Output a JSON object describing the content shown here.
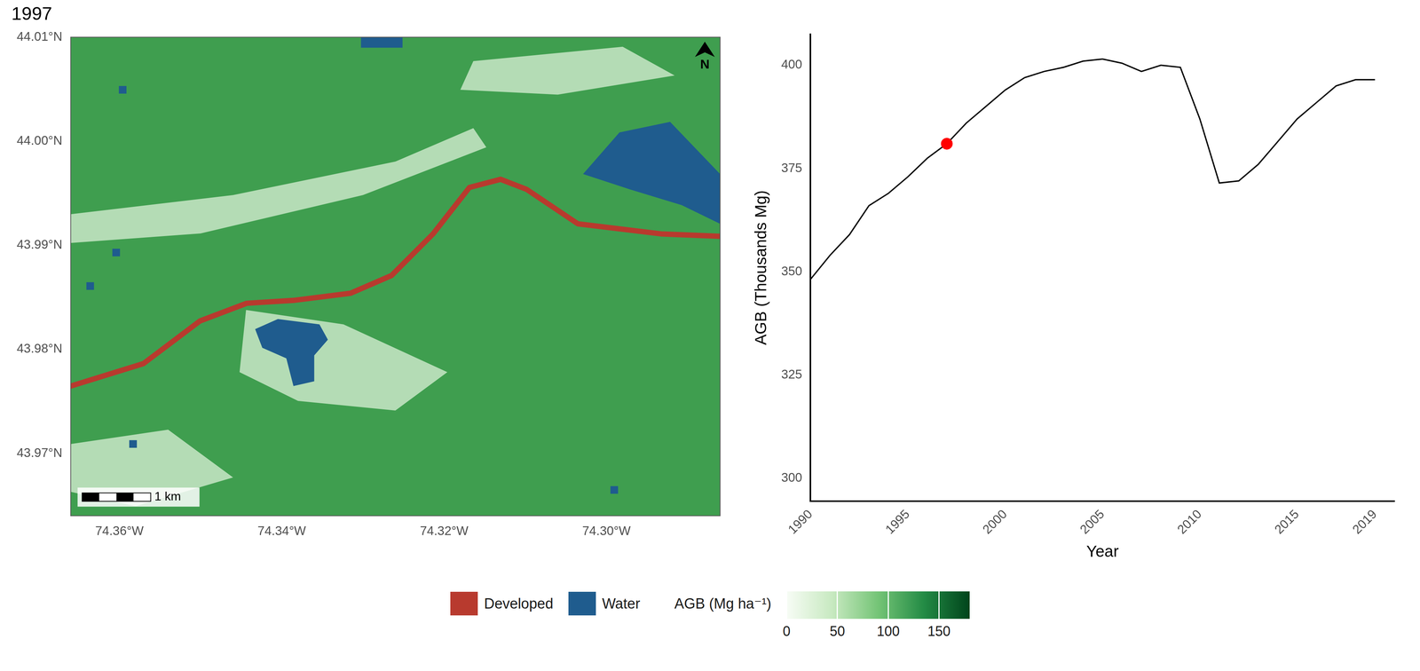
{
  "chart_data": [
    {
      "type": "map",
      "title": "1997",
      "xlim": [
        -74.366,
        -74.286
      ],
      "ylim": [
        43.964,
        44.01
      ],
      "xticks": [
        {
          "value": -74.36,
          "label": "74.36°W"
        },
        {
          "value": -74.34,
          "label": "74.34°W"
        },
        {
          "value": -74.32,
          "label": "74.32°W"
        },
        {
          "value": -74.3,
          "label": "74.30°W"
        }
      ],
      "yticks": [
        {
          "value": 43.97,
          "label": "43.97°N"
        },
        {
          "value": 43.98,
          "label": "43.98°N"
        },
        {
          "value": 43.99,
          "label": "43.99°N"
        },
        {
          "value": 44.0,
          "label": "44.00°N"
        },
        {
          "value": 44.01,
          "label": "44.01°N"
        }
      ],
      "grid": false,
      "legend": "bottom",
      "classes": [
        {
          "name": "Developed",
          "color": "#b83a2e"
        },
        {
          "name": "Water",
          "color": "#1f5c8e"
        }
      ],
      "colorbar": {
        "title": "AGB (Mg ha⁻¹)",
        "range": [
          0,
          180
        ],
        "ticks": [
          0,
          50,
          100,
          150
        ],
        "colors": [
          "#f7fcf5",
          "#c7e9c0",
          "#74c476",
          "#238b45",
          "#00441b"
        ]
      },
      "scale_bar": "1 km",
      "north": "N"
    },
    {
      "type": "line",
      "x": [
        1990,
        1991,
        1992,
        1993,
        1994,
        1995,
        1996,
        1997,
        1998,
        1999,
        2000,
        2001,
        2002,
        2003,
        2004,
        2005,
        2006,
        2007,
        2008,
        2009,
        2010,
        2011,
        2012,
        2013,
        2014,
        2015,
        2016,
        2017,
        2018,
        2019
      ],
      "values": [
        348.2,
        354,
        359,
        366,
        369,
        373,
        377.5,
        381,
        386,
        390,
        394,
        397,
        398.5,
        399.5,
        401,
        401.5,
        400.5,
        398.5,
        400,
        399.5,
        387,
        371.5,
        372,
        376,
        381.5,
        387,
        391,
        395,
        396.5,
        396.5
      ],
      "color": "#000000",
      "xlabel": "Year",
      "ylabel": "AGB (Thousands Mg)",
      "xlim": [
        1990,
        2020
      ],
      "ylim": [
        294.5,
        407.5
      ],
      "xticks": [
        1990,
        1995,
        2000,
        2005,
        2010,
        2015,
        2019
      ],
      "yticks": [
        300,
        325,
        350,
        375,
        400
      ],
      "grid": false,
      "highlight": {
        "x": 1997,
        "value": 381,
        "color": "#ff0000"
      }
    }
  ]
}
